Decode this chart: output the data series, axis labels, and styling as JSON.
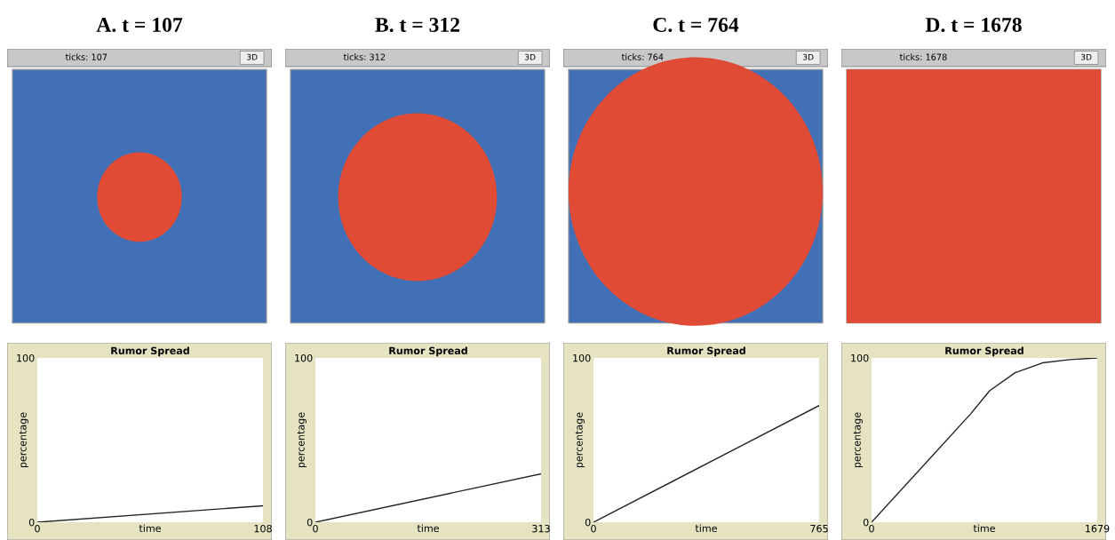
{
  "chart_data": [
    {
      "type": "line",
      "title": "A. t = 107",
      "subtitle": "Rumor Spread",
      "xlabel": "time",
      "ylabel": "percentage",
      "annotations": [
        "ticks: 107",
        "3D"
      ],
      "xlim": [
        0,
        108
      ],
      "xticks": [
        0,
        108
      ],
      "ylim": [
        0,
        100
      ],
      "yticks": [
        0,
        100
      ],
      "grid": false,
      "legend": false,
      "series": [
        {
          "color": "#222222",
          "x": [
            0,
            108
          ],
          "values": [
            0,
            10
          ]
        }
      ]
    },
    {
      "type": "line",
      "title": "B. t = 312",
      "subtitle": "Rumor Spread",
      "xlabel": "time",
      "ylabel": "percentage",
      "annotations": [
        "ticks: 312",
        "3D"
      ],
      "xlim": [
        0,
        313
      ],
      "xticks": [
        0,
        313
      ],
      "ylim": [
        0,
        100
      ],
      "yticks": [
        0,
        100
      ],
      "grid": false,
      "legend": false,
      "series": [
        {
          "color": "#222222",
          "x": [
            0,
            313
          ],
          "values": [
            0,
            29.5
          ]
        }
      ]
    },
    {
      "type": "line",
      "title": "C. t = 764",
      "subtitle": "Rumor Spread",
      "xlabel": "time",
      "ylabel": "percentage",
      "annotations": [
        "ticks: 764",
        "3D"
      ],
      "xlim": [
        0,
        765
      ],
      "xticks": [
        0,
        765
      ],
      "ylim": [
        0,
        100
      ],
      "yticks": [
        0,
        100
      ],
      "grid": false,
      "legend": false,
      "series": [
        {
          "color": "#222222",
          "x": [
            0,
            765
          ],
          "values": [
            0,
            71
          ]
        }
      ]
    },
    {
      "type": "line",
      "title": "D. t = 1678",
      "subtitle": "Rumor Spread",
      "xlabel": "time",
      "ylabel": "percentage",
      "annotations": [
        "ticks: 1678",
        "3D"
      ],
      "xlim": [
        0,
        1679
      ],
      "xticks": [
        0,
        1679
      ],
      "ylim": [
        0,
        100
      ],
      "yticks": [
        0,
        100
      ],
      "grid": false,
      "legend": false,
      "series": [
        {
          "color": "#222222",
          "x": [
            0,
            738,
            878,
            1068,
            1272,
            1475,
            1679
          ],
          "values": [
            0,
            66,
            80,
            91,
            97,
            99,
            100
          ]
        }
      ]
    }
  ]
}
